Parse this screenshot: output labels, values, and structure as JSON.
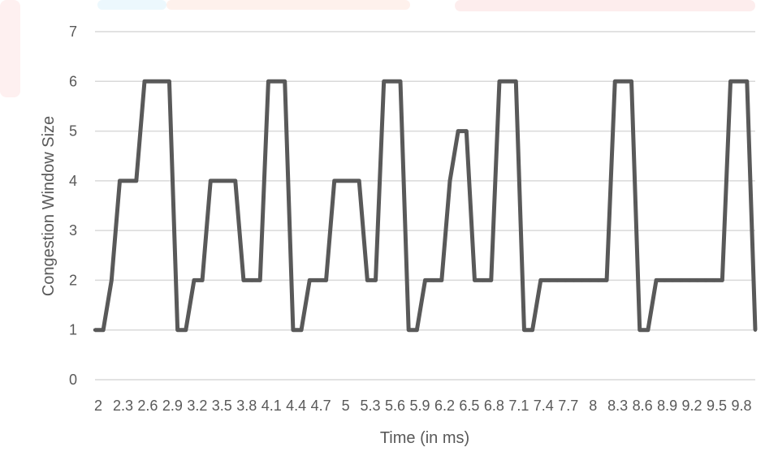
{
  "chart_data": {
    "type": "line",
    "title": "",
    "xlabel": "Time (in ms)",
    "ylabel": "Congestion Window Size",
    "ylim": [
      0,
      7
    ],
    "yticks": [
      "0",
      "1",
      "2",
      "3",
      "4",
      "5",
      "6",
      "7"
    ],
    "x": [
      2.0,
      2.1,
      2.2,
      2.3,
      2.4,
      2.5,
      2.6,
      2.7,
      2.8,
      2.9,
      3.0,
      3.1,
      3.2,
      3.3,
      3.4,
      3.5,
      3.6,
      3.7,
      3.8,
      3.9,
      4.0,
      4.1,
      4.2,
      4.3,
      4.4,
      4.5,
      4.6,
      4.7,
      4.8,
      4.9,
      5.0,
      5.1,
      5.2,
      5.3,
      5.4,
      5.5,
      5.6,
      5.7,
      5.8,
      5.9,
      6.0,
      6.1,
      6.2,
      6.3,
      6.4,
      6.5,
      6.6,
      6.7,
      6.8,
      6.9,
      7.0,
      7.1,
      7.2,
      7.3,
      7.4,
      7.5,
      7.6,
      7.7,
      7.8,
      7.9,
      8.0,
      8.1,
      8.2,
      8.3,
      8.4,
      8.5,
      8.6,
      8.7,
      8.8,
      8.9,
      9.0,
      9.1,
      9.2,
      9.3,
      9.4,
      9.5,
      9.6,
      9.7,
      9.8,
      9.9,
      10.0
    ],
    "xtick_labels": [
      "2",
      "2.3",
      "2.6",
      "2.9",
      "3.2",
      "3.5",
      "3.8",
      "4.1",
      "4.4",
      "4.7",
      "5",
      "5.3",
      "5.6",
      "5.9",
      "6.2",
      "6.5",
      "6.8",
      "7.1",
      "7.4",
      "7.7",
      "8",
      "8.3",
      "8.6",
      "8.9",
      "9.2",
      "9.5",
      "9.8"
    ],
    "series": [
      {
        "color": "#595959",
        "values": [
          1,
          1,
          2,
          4,
          4,
          4,
          6,
          6,
          6,
          6,
          1,
          1,
          2,
          2,
          4,
          4,
          4,
          4,
          2,
          2,
          2,
          6,
          6,
          6,
          1,
          1,
          2,
          2,
          2,
          4,
          4,
          4,
          4,
          2,
          2,
          6,
          6,
          6,
          1,
          1,
          2,
          2,
          2,
          4,
          5,
          5,
          2,
          2,
          2,
          6,
          6,
          6,
          1,
          1,
          2,
          2,
          2,
          2,
          2,
          2,
          2,
          2,
          2,
          6,
          6,
          6,
          1,
          1,
          2,
          2,
          2,
          2,
          2,
          2,
          2,
          2,
          2,
          6,
          6,
          6,
          1
        ]
      }
    ],
    "grid": true,
    "legend": "none"
  }
}
